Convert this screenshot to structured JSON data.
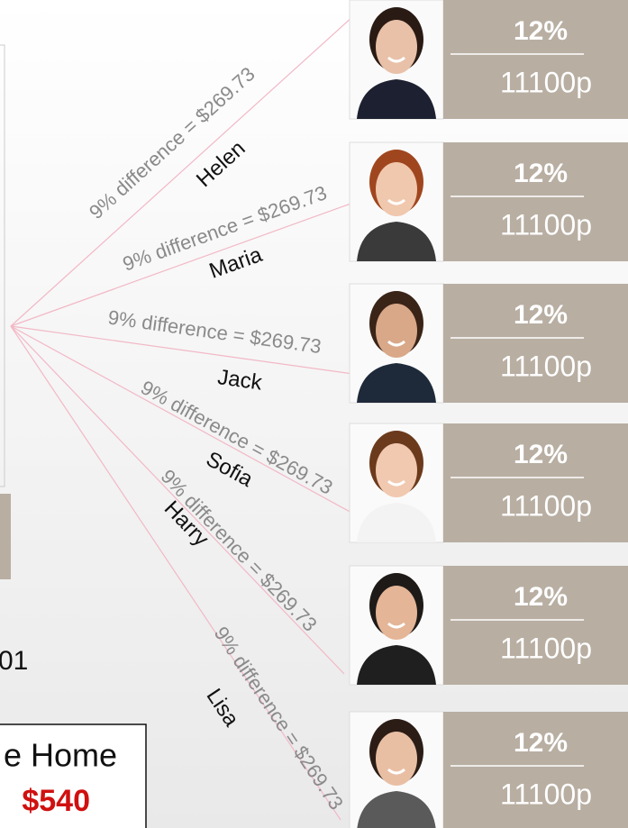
{
  "people": [
    {
      "name": "Helen",
      "difference": "9% difference = $269.73",
      "percent": "12%",
      "amount": "11100p"
    },
    {
      "name": "Maria",
      "difference": "9% difference = $269.73",
      "percent": "12%",
      "amount": "11100p"
    },
    {
      "name": "Jack",
      "difference": "9% difference = $269.73",
      "percent": "12%",
      "amount": "11100p"
    },
    {
      "name": "Sofia",
      "difference": "9% difference = $269.73",
      "percent": "12%",
      "amount": "11100p"
    },
    {
      "name": "Harry",
      "difference": "9% difference = $269.73",
      "percent": "12%",
      "amount": "11100p"
    },
    {
      "name": "Lisa",
      "difference": "9% difference = $269.73",
      "percent": "12%",
      "amount": "11100p"
    }
  ],
  "left": {
    "number": "01",
    "box_title": "e Home",
    "box_value": "$540"
  }
}
